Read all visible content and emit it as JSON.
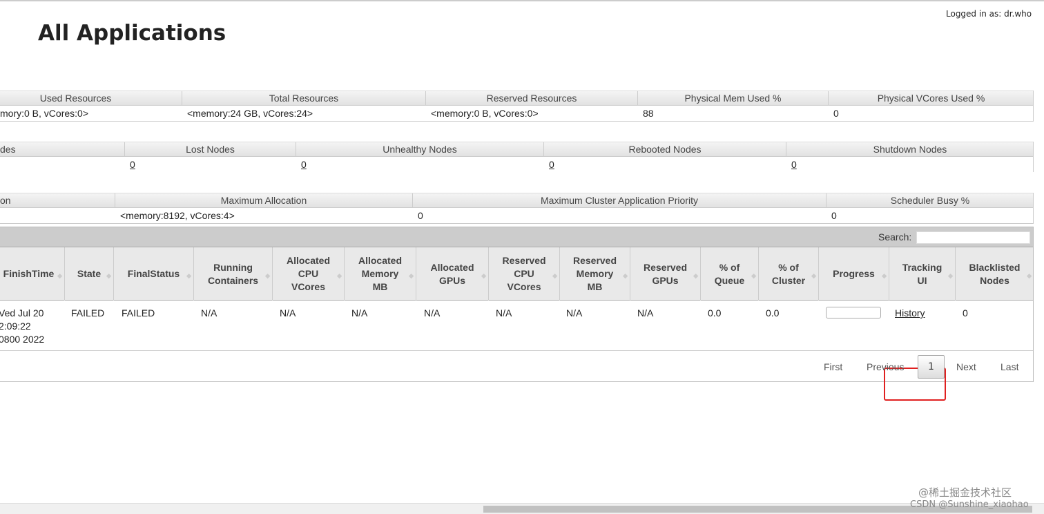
{
  "header": {
    "title": "All Applications",
    "logged_in": "Logged in as: dr.who"
  },
  "cluster_metrics": {
    "headers": [
      "Used Resources",
      "Total Resources",
      "Reserved Resources",
      "Physical Mem Used %",
      "Physical VCores Used %"
    ],
    "values": [
      "mory:0 B, vCores:0>",
      "<memory:24 GB, vCores:24>",
      "<memory:0 B, vCores:0>",
      "88",
      "0"
    ]
  },
  "node_metrics": {
    "headers": [
      "des",
      "Lost Nodes",
      "Unhealthy Nodes",
      "Rebooted Nodes",
      "Shutdown Nodes"
    ],
    "values": [
      "",
      "0",
      "0",
      "0",
      "0"
    ]
  },
  "scheduler_metrics": {
    "headers": [
      "on",
      "Maximum Allocation",
      "Maximum Cluster Application Priority",
      "Scheduler Busy %"
    ],
    "values": [
      "",
      "<memory:8192, vCores:4>",
      "0",
      "0"
    ]
  },
  "apps": {
    "search_label": "Search:",
    "search_value": "",
    "columns": [
      "FinishTime",
      "State",
      "FinalStatus",
      "Running Containers",
      "Allocated CPU VCores",
      "Allocated Memory MB",
      "Allocated GPUs",
      "Reserved CPU VCores",
      "Reserved Memory MB",
      "Reserved GPUs",
      "% of Queue",
      "% of Cluster",
      "Progress",
      "Tracking UI",
      "Blacklisted Nodes"
    ],
    "row": {
      "finish_time": "Ved Jul 20\n2:09:22\n0800 2022",
      "state": "FAILED",
      "final_status": "FAILED",
      "running_containers": "N/A",
      "alloc_cpu": "N/A",
      "alloc_mem": "N/A",
      "alloc_gpu": "N/A",
      "res_cpu": "N/A",
      "res_mem": "N/A",
      "res_gpu": "N/A",
      "pct_queue": "0.0",
      "pct_cluster": "0.0",
      "progress": 0,
      "tracking_ui": "History",
      "blacklisted": "0"
    },
    "pagination": {
      "first": "First",
      "previous": "Previous",
      "current": "1",
      "next": "Next",
      "last": "Last"
    }
  },
  "watermarks": [
    "@稀土掘金技术社区",
    "CSDN @Sunshine_xiaohao"
  ],
  "colors": {
    "highlight": "#e02020",
    "header_bg": "#e9e9e9"
  }
}
